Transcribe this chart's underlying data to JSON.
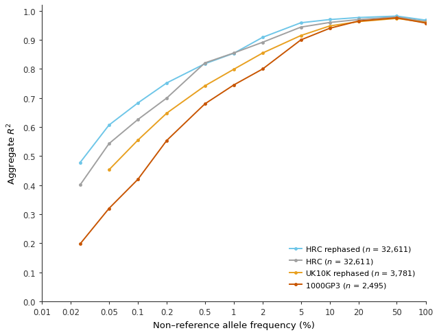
{
  "title": "",
  "xlabel": "Non–reference allele frequency (%)",
  "xlim_log": [
    0.01,
    100
  ],
  "ylim": [
    0.0,
    1.02
  ],
  "series": [
    {
      "label": "HRC rephased ($n$ = 32,611)",
      "color": "#6EC6E8",
      "x": [
        0.025,
        0.05,
        0.1,
        0.2,
        0.5,
        1,
        2,
        5,
        10,
        20,
        50,
        100
      ],
      "y": [
        0.478,
        0.607,
        0.683,
        0.752,
        0.818,
        0.854,
        0.909,
        0.959,
        0.97,
        0.977,
        0.982,
        0.968
      ]
    },
    {
      "label": "HRC ($n$ = 32,611)",
      "color": "#A0A0A0",
      "x": [
        0.025,
        0.05,
        0.1,
        0.2,
        0.5,
        1,
        2,
        5,
        10,
        20,
        50,
        100
      ],
      "y": [
        0.401,
        0.543,
        0.626,
        0.7,
        0.821,
        0.855,
        0.892,
        0.944,
        0.96,
        0.97,
        0.979,
        0.963
      ]
    },
    {
      "label": "UK10K rephased ($n$ = 3,781)",
      "color": "#E8A020",
      "x": [
        0.05,
        0.1,
        0.2,
        0.5,
        1,
        2,
        5,
        10,
        20,
        50,
        100
      ],
      "y": [
        0.453,
        0.555,
        0.648,
        0.742,
        0.799,
        0.855,
        0.915,
        0.948,
        0.963,
        0.974,
        0.96
      ]
    },
    {
      "label": "1000GP3 ($n$ = 2,495)",
      "color": "#C85500",
      "x": [
        0.025,
        0.05,
        0.1,
        0.2,
        0.5,
        1,
        2,
        5,
        10,
        20,
        50,
        100
      ],
      "y": [
        0.198,
        0.32,
        0.42,
        0.554,
        0.68,
        0.745,
        0.8,
        0.9,
        0.94,
        0.965,
        0.976,
        0.958
      ]
    }
  ],
  "xticks": [
    0.01,
    0.02,
    0.05,
    0.1,
    0.2,
    0.5,
    1,
    2,
    5,
    10,
    20,
    50,
    100
  ],
  "xtick_labels": [
    "0.01",
    "0.02",
    "0.05",
    "0.1",
    "0.2",
    "0.5",
    "1",
    "2",
    "5",
    "10",
    "20",
    "50",
    "100"
  ],
  "yticks": [
    0.0,
    0.1,
    0.2,
    0.3,
    0.4,
    0.5,
    0.6,
    0.7,
    0.8,
    0.9,
    1.0
  ],
  "marker": "o",
  "markersize": 3.0,
  "linewidth": 1.4
}
